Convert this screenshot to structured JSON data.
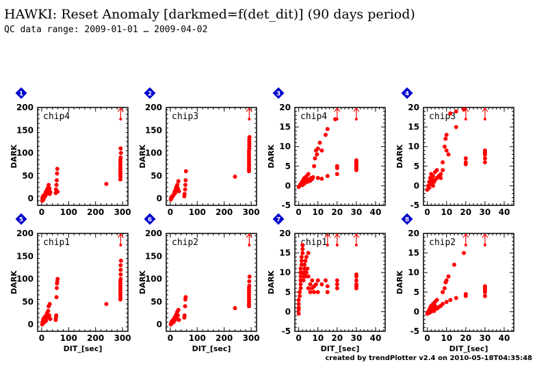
{
  "header": {
    "title": "HAWKI: Reset Anomaly [darkmed=f(det_dit)] (90 days period)",
    "subtitle": "QC data range: 2009-01-01 … 2009-04-02"
  },
  "footer": {
    "credit": "created by trendPlotter v2.4 on 2010-05-18T04:35:48"
  },
  "colors": {
    "data": "#ff0000",
    "badge": "#0000cc",
    "axis": "#000000"
  },
  "chart_data": [
    {
      "type": "scatter",
      "badge": "1",
      "label": "chip4",
      "ylabel": "DARK",
      "xlabel": "",
      "xlim": [
        -15,
        320
      ],
      "ylim": [
        -15,
        200
      ],
      "xticks": [
        0,
        100,
        200,
        300
      ],
      "yticks": [
        0,
        50,
        100,
        150,
        200
      ],
      "offscale_x": [
        293
      ],
      "points": [
        [
          2,
          -5
        ],
        [
          3,
          0
        ],
        [
          4,
          3
        ],
        [
          5,
          5
        ],
        [
          6,
          2
        ],
        [
          7,
          -2
        ],
        [
          8,
          6
        ],
        [
          10,
          8
        ],
        [
          12,
          4
        ],
        [
          14,
          10
        ],
        [
          15,
          14
        ],
        [
          17,
          9
        ],
        [
          19,
          16
        ],
        [
          20,
          20
        ],
        [
          22,
          12
        ],
        [
          24,
          24
        ],
        [
          26,
          30
        ],
        [
          27,
          18
        ],
        [
          29,
          22
        ],
        [
          30,
          10
        ],
        [
          32,
          14
        ],
        [
          52,
          12
        ],
        [
          53,
          20
        ],
        [
          55,
          30
        ],
        [
          56,
          40
        ],
        [
          57,
          55
        ],
        [
          58,
          65
        ],
        [
          59,
          15
        ],
        [
          240,
          32
        ],
        [
          292,
          42
        ],
        [
          292,
          48
        ],
        [
          292,
          52
        ],
        [
          292,
          56
        ],
        [
          292,
          60
        ],
        [
          292,
          65
        ],
        [
          292,
          70
        ],
        [
          292,
          75
        ],
        [
          292,
          80
        ],
        [
          292,
          85
        ],
        [
          293,
          90
        ],
        [
          293,
          110
        ],
        [
          294,
          100
        ]
      ]
    },
    {
      "type": "scatter",
      "badge": "2",
      "label": "chip3",
      "ylabel": "DARK",
      "xlabel": "",
      "xlim": [
        -15,
        320
      ],
      "ylim": [
        -15,
        200
      ],
      "xticks": [
        0,
        100,
        200,
        300
      ],
      "yticks": [
        0,
        50,
        100,
        150,
        200
      ],
      "offscale_x": [
        293
      ],
      "points": [
        [
          2,
          -2
        ],
        [
          3,
          0
        ],
        [
          4,
          2
        ],
        [
          5,
          4
        ],
        [
          7,
          3
        ],
        [
          8,
          5
        ],
        [
          10,
          6
        ],
        [
          12,
          8
        ],
        [
          14,
          10
        ],
        [
          16,
          15
        ],
        [
          18,
          12
        ],
        [
          20,
          20
        ],
        [
          22,
          25
        ],
        [
          24,
          18
        ],
        [
          26,
          30
        ],
        [
          28,
          22
        ],
        [
          30,
          38
        ],
        [
          32,
          16
        ],
        [
          52,
          5
        ],
        [
          53,
          10
        ],
        [
          55,
          20
        ],
        [
          56,
          30
        ],
        [
          57,
          40
        ],
        [
          58,
          60
        ],
        [
          240,
          48
        ],
        [
          292,
          60
        ],
        [
          292,
          65
        ],
        [
          292,
          70
        ],
        [
          292,
          75
        ],
        [
          292,
          80
        ],
        [
          292,
          85
        ],
        [
          292,
          90
        ],
        [
          292,
          95
        ],
        [
          292,
          100
        ],
        [
          292,
          105
        ],
        [
          293,
          110
        ],
        [
          293,
          115
        ],
        [
          293,
          120
        ],
        [
          293,
          125
        ],
        [
          293,
          130
        ],
        [
          294,
          135
        ]
      ]
    },
    {
      "type": "scatter",
      "badge": "3",
      "label": "chip4",
      "ylabel": "DARK",
      "xlabel": "",
      "xlim": [
        -2,
        45
      ],
      "ylim": [
        -5,
        20
      ],
      "xticks": [
        0,
        10,
        20,
        30,
        40
      ],
      "yticks": [
        -5,
        0,
        5,
        10,
        15,
        20
      ],
      "offscale_x": [
        20,
        30
      ],
      "points": [
        [
          0,
          -0.3
        ],
        [
          0.5,
          0
        ],
        [
          1,
          0.4
        ],
        [
          1.5,
          0.8
        ],
        [
          2,
          1.2
        ],
        [
          2,
          0.2
        ],
        [
          2.5,
          1.6
        ],
        [
          3,
          2
        ],
        [
          3,
          0.6
        ],
        [
          3.5,
          1
        ],
        [
          4,
          2.4
        ],
        [
          4,
          1.4
        ],
        [
          4.5,
          1
        ],
        [
          5,
          3
        ],
        [
          5,
          1.5
        ],
        [
          5.5,
          1.2
        ],
        [
          6,
          1.8
        ],
        [
          6,
          1.3
        ],
        [
          6.5,
          2
        ],
        [
          7,
          1.7
        ],
        [
          7.5,
          2.2
        ],
        [
          8,
          5
        ],
        [
          8.5,
          7
        ],
        [
          9,
          9
        ],
        [
          9.5,
          8
        ],
        [
          10,
          9.5
        ],
        [
          10,
          2
        ],
        [
          11,
          11
        ],
        [
          12,
          1.8
        ],
        [
          12,
          9
        ],
        [
          14,
          13
        ],
        [
          15,
          14.5
        ],
        [
          15,
          2.5
        ],
        [
          19,
          17
        ],
        [
          20,
          3
        ],
        [
          20,
          4.5
        ],
        [
          20,
          5
        ],
        [
          30,
          4
        ],
        [
          30,
          4.5
        ],
        [
          30,
          5
        ],
        [
          30,
          5.5
        ],
        [
          30,
          6
        ],
        [
          30,
          6.5
        ]
      ]
    },
    {
      "type": "scatter",
      "badge": "4",
      "label": "chip3",
      "ylabel": "DARK",
      "xlabel": "",
      "xlim": [
        -2,
        45
      ],
      "ylim": [
        -5,
        20
      ],
      "xticks": [
        0,
        10,
        20,
        30,
        40
      ],
      "yticks": [
        -5,
        0,
        5,
        10,
        15,
        20
      ],
      "offscale_x": [
        20,
        30
      ],
      "points": [
        [
          0,
          -1
        ],
        [
          0.5,
          0
        ],
        [
          1,
          1
        ],
        [
          1,
          -0.5
        ],
        [
          1.5,
          2
        ],
        [
          2,
          0.5
        ],
        [
          2,
          3
        ],
        [
          2.5,
          1.5
        ],
        [
          3,
          2.5
        ],
        [
          3,
          0
        ],
        [
          3.5,
          1
        ],
        [
          4,
          3.5
        ],
        [
          4,
          1.5
        ],
        [
          5,
          2
        ],
        [
          5,
          4
        ],
        [
          6,
          2.5
        ],
        [
          7,
          3
        ],
        [
          7,
          2
        ],
        [
          8,
          4
        ],
        [
          8,
          6
        ],
        [
          9,
          10
        ],
        [
          9.5,
          12
        ],
        [
          10,
          9
        ],
        [
          10,
          13
        ],
        [
          11,
          8
        ],
        [
          12,
          18.5
        ],
        [
          15,
          15
        ],
        [
          15,
          19
        ],
        [
          19,
          19.5
        ],
        [
          20,
          5.5
        ],
        [
          20,
          6
        ],
        [
          20,
          7
        ],
        [
          30,
          6
        ],
        [
          30,
          7
        ],
        [
          30,
          8
        ],
        [
          30,
          8.5
        ],
        [
          30,
          9
        ]
      ]
    },
    {
      "type": "scatter",
      "badge": "5",
      "label": "chip1",
      "ylabel": "DARK",
      "xlabel": "DIT_[sec]",
      "xlim": [
        -15,
        320
      ],
      "ylim": [
        -15,
        200
      ],
      "xticks": [
        0,
        100,
        200,
        300
      ],
      "yticks": [
        0,
        50,
        100,
        150,
        200
      ],
      "offscale_x": [
        293
      ],
      "points": [
        [
          2,
          0
        ],
        [
          3,
          5
        ],
        [
          4,
          2
        ],
        [
          5,
          8
        ],
        [
          6,
          12
        ],
        [
          8,
          4
        ],
        [
          10,
          15
        ],
        [
          12,
          10
        ],
        [
          14,
          18
        ],
        [
          16,
          8
        ],
        [
          18,
          20
        ],
        [
          20,
          25
        ],
        [
          22,
          15
        ],
        [
          24,
          30
        ],
        [
          26,
          40
        ],
        [
          28,
          20
        ],
        [
          30,
          45
        ],
        [
          32,
          12
        ],
        [
          52,
          10
        ],
        [
          53,
          15
        ],
        [
          54,
          20
        ],
        [
          55,
          60
        ],
        [
          56,
          80
        ],
        [
          57,
          90
        ],
        [
          58,
          95
        ],
        [
          59,
          100
        ],
        [
          240,
          45
        ],
        [
          292,
          55
        ],
        [
          292,
          60
        ],
        [
          292,
          65
        ],
        [
          292,
          70
        ],
        [
          292,
          75
        ],
        [
          292,
          80
        ],
        [
          292,
          85
        ],
        [
          292,
          90
        ],
        [
          292,
          95
        ],
        [
          293,
          100
        ],
        [
          293,
          110
        ],
        [
          293,
          120
        ],
        [
          293,
          130
        ],
        [
          294,
          140
        ]
      ]
    },
    {
      "type": "scatter",
      "badge": "6",
      "label": "chip2",
      "ylabel": "DARK",
      "xlabel": "DIT_[sec]",
      "xlim": [
        -15,
        320
      ],
      "ylim": [
        -15,
        200
      ],
      "xticks": [
        0,
        100,
        200,
        300
      ],
      "yticks": [
        0,
        50,
        100,
        150,
        200
      ],
      "offscale_x": [
        293
      ],
      "points": [
        [
          2,
          0
        ],
        [
          3,
          2
        ],
        [
          4,
          4
        ],
        [
          5,
          6
        ],
        [
          6,
          3
        ],
        [
          8,
          8
        ],
        [
          10,
          10
        ],
        [
          12,
          5
        ],
        [
          14,
          12
        ],
        [
          16,
          15
        ],
        [
          18,
          10
        ],
        [
          20,
          18
        ],
        [
          22,
          22
        ],
        [
          24,
          14
        ],
        [
          26,
          28
        ],
        [
          28,
          20
        ],
        [
          30,
          32
        ],
        [
          32,
          10
        ],
        [
          52,
          15
        ],
        [
          53,
          20
        ],
        [
          55,
          40
        ],
        [
          56,
          55
        ],
        [
          57,
          60
        ],
        [
          240,
          36
        ],
        [
          292,
          40
        ],
        [
          292,
          45
        ],
        [
          292,
          50
        ],
        [
          292,
          55
        ],
        [
          292,
          60
        ],
        [
          292,
          65
        ],
        [
          292,
          70
        ],
        [
          292,
          75
        ],
        [
          292,
          80
        ],
        [
          293,
          85
        ],
        [
          293,
          95
        ],
        [
          294,
          105
        ]
      ]
    },
    {
      "type": "scatter",
      "badge": "7",
      "label": "chip1",
      "ylabel": "DARK",
      "xlabel": "DIT_[sec]",
      "xlim": [
        -2,
        45
      ],
      "ylim": [
        -5,
        20
      ],
      "xticks": [
        0,
        10,
        20,
        30,
        40
      ],
      "yticks": [
        -5,
        0,
        5,
        10,
        15,
        20
      ],
      "offscale_x": [
        15,
        20,
        30
      ],
      "points": [
        [
          0,
          -0.5
        ],
        [
          0,
          0.5
        ],
        [
          0,
          1
        ],
        [
          0,
          2
        ],
        [
          0,
          3
        ],
        [
          0.5,
          4
        ],
        [
          0.5,
          5
        ],
        [
          1,
          6
        ],
        [
          1,
          7
        ],
        [
          1,
          8
        ],
        [
          1,
          9
        ],
        [
          1,
          10
        ],
        [
          1,
          11
        ],
        [
          1.5,
          12
        ],
        [
          1.5,
          13
        ],
        [
          1.5,
          14
        ],
        [
          2,
          15
        ],
        [
          2,
          16
        ],
        [
          2,
          17
        ],
        [
          2,
          10
        ],
        [
          2.5,
          9
        ],
        [
          2.5,
          8
        ],
        [
          3,
          11
        ],
        [
          3,
          12
        ],
        [
          3,
          10
        ],
        [
          3.5,
          13
        ],
        [
          3.5,
          9
        ],
        [
          4,
          14
        ],
        [
          4,
          10
        ],
        [
          4.5,
          11
        ],
        [
          5,
          15
        ],
        [
          5,
          9
        ],
        [
          5,
          6
        ],
        [
          6,
          7
        ],
        [
          6,
          5
        ],
        [
          7,
          6
        ],
        [
          7,
          8
        ],
        [
          8,
          5
        ],
        [
          8,
          6.5
        ],
        [
          9,
          7
        ],
        [
          10,
          5
        ],
        [
          10,
          8
        ],
        [
          12,
          7
        ],
        [
          14,
          8
        ],
        [
          15,
          5
        ],
        [
          15,
          6.5
        ],
        [
          20,
          6
        ],
        [
          20,
          7
        ],
        [
          20,
          8
        ],
        [
          30,
          6
        ],
        [
          30,
          6.5
        ],
        [
          30,
          7
        ],
        [
          30,
          8
        ],
        [
          30,
          9
        ],
        [
          30,
          9.5
        ]
      ]
    },
    {
      "type": "scatter",
      "badge": "8",
      "label": "chip2",
      "ylabel": "DARK",
      "xlabel": "DIT_[sec]",
      "xlim": [
        -2,
        45
      ],
      "ylim": [
        -5,
        20
      ],
      "xticks": [
        0,
        10,
        20,
        30,
        40
      ],
      "yticks": [
        -5,
        0,
        5,
        10,
        15,
        20
      ],
      "offscale_x": [
        20,
        30
      ],
      "points": [
        [
          0,
          -0.5
        ],
        [
          0.5,
          0
        ],
        [
          1,
          0.5
        ],
        [
          1,
          -0.3
        ],
        [
          1.5,
          1
        ],
        [
          2,
          0
        ],
        [
          2,
          1.5
        ],
        [
          2.5,
          0.5
        ],
        [
          3,
          1
        ],
        [
          3,
          2
        ],
        [
          3.5,
          0.2
        ],
        [
          4,
          1.5
        ],
        [
          4,
          2.5
        ],
        [
          5,
          0.8
        ],
        [
          5,
          3
        ],
        [
          6,
          1.2
        ],
        [
          7,
          1.5
        ],
        [
          8,
          2
        ],
        [
          8,
          5
        ],
        [
          9,
          6
        ],
        [
          9.5,
          7.5
        ],
        [
          10,
          8
        ],
        [
          10,
          2.5
        ],
        [
          11,
          9
        ],
        [
          12,
          3
        ],
        [
          14,
          12
        ],
        [
          15,
          3.5
        ],
        [
          19,
          15
        ],
        [
          20,
          4
        ],
        [
          20,
          4.5
        ],
        [
          30,
          4
        ],
        [
          30,
          5
        ],
        [
          30,
          5.5
        ],
        [
          30,
          6
        ],
        [
          30,
          6.5
        ]
      ]
    }
  ]
}
